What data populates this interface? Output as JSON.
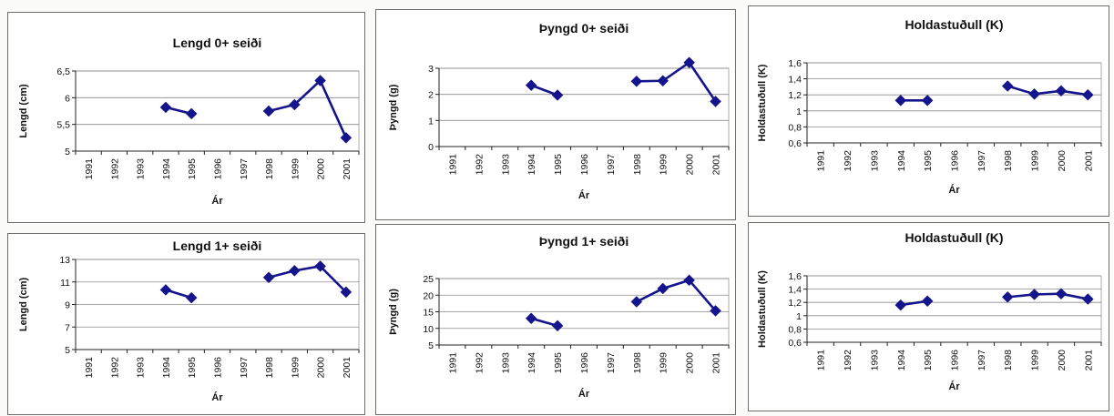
{
  "chart_data": [
    {
      "type": "line",
      "title": "Lengd 0+ seiði",
      "xlabel": "Ár",
      "ylabel": "Lengd (cm)",
      "categories": [
        "1991",
        "1992",
        "1993",
        "1994",
        "1995",
        "1996",
        "1997",
        "1998",
        "1999",
        "2000",
        "2001"
      ],
      "values": [
        null,
        null,
        null,
        5.82,
        5.7,
        null,
        null,
        5.75,
        5.87,
        6.32,
        5.25
      ],
      "ylim": [
        5,
        6.5
      ],
      "yticks": [
        "5",
        "5,5",
        "6",
        "6,5"
      ],
      "grid": true,
      "legend": "none"
    },
    {
      "type": "line",
      "title": "Þyngd 0+ seiði",
      "xlabel": "Ár",
      "ylabel": "Þyngd (g)",
      "categories": [
        "1991",
        "1992",
        "1993",
        "1994",
        "1995",
        "1996",
        "1997",
        "1998",
        "1999",
        "2000",
        "2001"
      ],
      "values": [
        null,
        null,
        null,
        2.35,
        1.97,
        null,
        null,
        2.5,
        2.52,
        3.22,
        1.73
      ],
      "ylim": [
        0,
        3
      ],
      "yticks": [
        "0",
        "1",
        "2",
        "3"
      ],
      "grid": true,
      "legend": "none"
    },
    {
      "type": "line",
      "title": "Holdastuðull (K)",
      "xlabel": "Ár",
      "ylabel": "Holdastuðull (K)",
      "categories": [
        "1991",
        "1992",
        "1993",
        "1994",
        "1995",
        "1996",
        "1997",
        "1998",
        "1999",
        "2000",
        "2001"
      ],
      "values": [
        null,
        null,
        null,
        1.13,
        1.13,
        null,
        null,
        1.31,
        1.21,
        1.25,
        1.2
      ],
      "ylim": [
        0.6,
        1.6
      ],
      "yticks": [
        "0,6",
        "0,8",
        "1",
        "1,2",
        "1,4",
        "1,6"
      ],
      "grid": true,
      "legend": "none"
    },
    {
      "type": "line",
      "title": "Lengd 1+ seiði",
      "xlabel": "Ár",
      "ylabel": "Lengd (cm)",
      "categories": [
        "1991",
        "1992",
        "1993",
        "1994",
        "1995",
        "1996",
        "1997",
        "1998",
        "1999",
        "2000",
        "2001"
      ],
      "values": [
        null,
        null,
        null,
        10.3,
        9.6,
        null,
        null,
        11.4,
        12.0,
        12.4,
        10.1
      ],
      "ylim": [
        5,
        13
      ],
      "yticks": [
        "5",
        "7",
        "9",
        "11",
        "13"
      ],
      "grid": true,
      "legend": "none"
    },
    {
      "type": "line",
      "title": "Þyngd 1+ seiði",
      "xlabel": "Ár",
      "ylabel": "Þyngd (g)",
      "categories": [
        "1991",
        "1992",
        "1993",
        "1994",
        "1995",
        "1996",
        "1997",
        "1998",
        "1999",
        "2000",
        "2001"
      ],
      "values": [
        null,
        null,
        null,
        13.0,
        10.8,
        null,
        null,
        18.0,
        22.0,
        24.5,
        15.3
      ],
      "ylim": [
        5,
        25
      ],
      "yticks": [
        "5",
        "10",
        "15",
        "20",
        "25"
      ],
      "grid": true,
      "legend": "none"
    },
    {
      "type": "line",
      "title": "Holdastuðull (K)",
      "xlabel": "Ár",
      "ylabel": "Holdastuðull (K)",
      "categories": [
        "1991",
        "1992",
        "1993",
        "1994",
        "1995",
        "1996",
        "1997",
        "1998",
        "1999",
        "2000",
        "2001"
      ],
      "values": [
        null,
        null,
        null,
        1.16,
        1.22,
        null,
        null,
        1.28,
        1.32,
        1.33,
        1.25
      ],
      "ylim": [
        0.6,
        1.6
      ],
      "yticks": [
        "0,6",
        "0,8",
        "1",
        "1,2",
        "1,4",
        "1,6"
      ],
      "grid": true,
      "legend": "none"
    }
  ],
  "colors": {
    "series": "#14148c",
    "grid": "#8a8a8a",
    "panel_bg": "#ffffff",
    "page_bg": "#fbfbf9"
  }
}
